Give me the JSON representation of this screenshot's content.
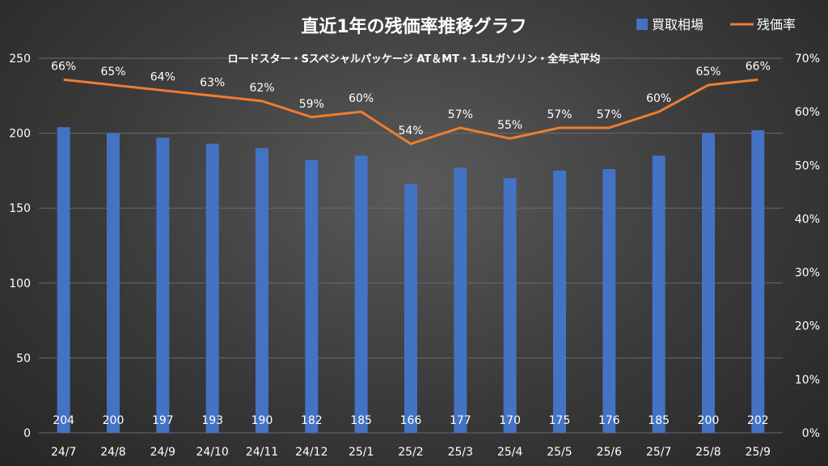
{
  "chart_data": {
    "type": "bar+line",
    "title": "直近1年の残価率推移グラフ",
    "subtitle": "ロードスター・Sスペシャルパッケージ AT＆MT・1.5Lガソリン・全年式平均",
    "categories": [
      "24/7",
      "24/8",
      "24/9",
      "24/10",
      "24/11",
      "24/12",
      "25/1",
      "25/2",
      "25/3",
      "25/4",
      "25/5",
      "25/6",
      "25/7",
      "25/8",
      "25/9"
    ],
    "series": [
      {
        "name": "買取相場",
        "type": "bar",
        "axis": "left",
        "color": "#4472c4",
        "values": [
          204,
          200,
          197,
          193,
          190,
          182,
          185,
          166,
          177,
          170,
          175,
          176,
          185,
          200,
          202
        ],
        "labels": [
          "204",
          "200",
          "197",
          "193",
          "190",
          "182",
          "185",
          "166",
          "177",
          "170",
          "175",
          "176",
          "185",
          "200",
          "202"
        ]
      },
      {
        "name": "残価率",
        "type": "line",
        "axis": "right",
        "color": "#ed7d31",
        "values": [
          66,
          65,
          64,
          63,
          62,
          59,
          60,
          54,
          57,
          55,
          57,
          57,
          60,
          65,
          66
        ],
        "labels": [
          "66%",
          "65%",
          "64%",
          "63%",
          "62%",
          "59%",
          "60%",
          "54%",
          "57%",
          "55%",
          "57%",
          "57%",
          "60%",
          "65%",
          "66%"
        ]
      }
    ],
    "left_axis": {
      "min": 0,
      "max": 250,
      "ticks": [
        "0",
        "50",
        "100",
        "150",
        "200",
        "250"
      ],
      "tick_values": [
        0,
        50,
        100,
        150,
        200,
        250
      ]
    },
    "right_axis": {
      "min": 0,
      "max": 70,
      "ticks": [
        "0%",
        "10%",
        "20%",
        "30%",
        "40%",
        "50%",
        "60%",
        "70%"
      ],
      "tick_values": [
        0,
        10,
        20,
        30,
        40,
        50,
        60,
        70
      ]
    },
    "legend": {
      "position": "top-right",
      "items": [
        "買取相場",
        "残価率"
      ]
    },
    "grid": true
  }
}
